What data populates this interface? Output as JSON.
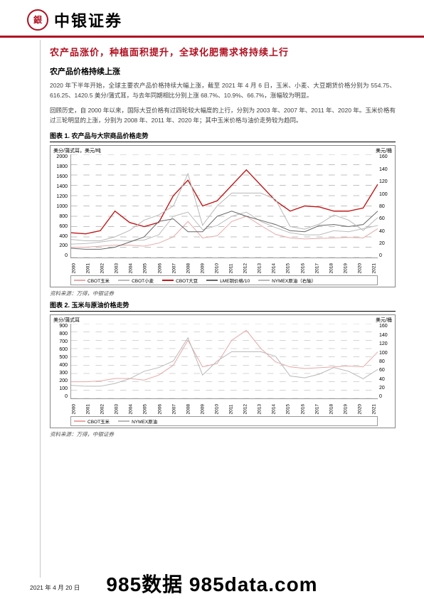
{
  "header": {
    "brand": "中银证券",
    "logo_char": "㊥",
    "rule_color": "#b01020"
  },
  "doc": {
    "title": "农产品涨价，种植面积提升，全球化肥需求将持续上行",
    "subhead": "农产品价格持续上涨",
    "para1": "2020 年下半年开始，全球主要农产品价格持续大幅上涨，截至 2021 年 4 月 6 日，玉米、小麦、大豆期货价格分别为 554.75、616.25、1420.5 美分/蒲式耳，与去年同期相比分别上涨 68.7%、10.9%、66.7%，涨幅较为明显。",
    "para2": "回顾历史，自 2000 年以来，国际大豆价格有过四轮较大幅度的上行，分别为 2003 年、2007 年、2011 年、2020 年。玉米价格有过三轮明显的上涨，分别为 2008 年、2011 年、2020 年；其中玉米价格与油价走势较为趋同。"
  },
  "chart1": {
    "title": "图表 1. 农产品与大宗商品价格走势",
    "ylabel_left": "美分/蒲式耳，美元/吨",
    "ylabel_right": "美元/桶",
    "ylim_left": [
      0,
      2000
    ],
    "ytick_left_step": 200,
    "ylim_right": [
      0,
      160
    ],
    "ytick_right_step": 20,
    "xyears": [
      "2000",
      "2001",
      "2002",
      "2003",
      "2004",
      "2005",
      "2006",
      "2007",
      "2008",
      "2009",
      "2010",
      "2011",
      "2012",
      "2013",
      "2014",
      "2015",
      "2016",
      "2017",
      "2018",
      "2019",
      "2020",
      "2021"
    ],
    "series": {
      "corn": {
        "color": "#e8a8a8",
        "label": "CBOT玉米",
        "data": [
          200,
          200,
          220,
          240,
          240,
          220,
          280,
          400,
          700,
          380,
          420,
          700,
          800,
          620,
          450,
          380,
          360,
          370,
          380,
          390,
          380,
          560
        ]
      },
      "wheat": {
        "color": "#bbbbbb",
        "label": "CBOT小麦",
        "data": [
          260,
          270,
          300,
          340,
          320,
          340,
          440,
          800,
          880,
          540,
          620,
          800,
          880,
          700,
          580,
          480,
          440,
          440,
          520,
          500,
          560,
          620
        ]
      },
      "soybean": {
        "color": "#c21818",
        "label": "CBOT大豆",
        "data": [
          480,
          460,
          520,
          900,
          680,
          600,
          680,
          1200,
          1500,
          1000,
          1100,
          1400,
          1700,
          1400,
          1100,
          900,
          1000,
          980,
          900,
          900,
          960,
          1420
        ]
      },
      "copper": {
        "color": "#666666",
        "label": "LME铜价格/10",
        "data": [
          180,
          160,
          160,
          200,
          300,
          400,
          700,
          750,
          500,
          500,
          800,
          900,
          800,
          720,
          640,
          520,
          500,
          620,
          640,
          600,
          640,
          900
        ]
      },
      "crude": {
        "color": "#b8b8b8",
        "label": "NYMEX原油（右轴）",
        "data": [
          28,
          26,
          26,
          32,
          42,
          58,
          66,
          80,
          130,
          50,
          80,
          100,
          100,
          100,
          90,
          48,
          44,
          52,
          66,
          58,
          42,
          62
        ]
      }
    },
    "grid_color": "#aaaaaa",
    "background": "#ffffff",
    "source": "资料来源：万得，中银证券"
  },
  "chart2": {
    "title": "图表 2. 玉米与原油价格走势",
    "ylabel_left": "美分/蒲式耳",
    "ylabel_right": "美元/桶",
    "ylim_left": [
      0,
      900
    ],
    "ytick_left_step": 100,
    "ylim_right": [
      0,
      160
    ],
    "ytick_right_step": 20,
    "xyears": [
      "2000",
      "2001",
      "2002",
      "2003",
      "2004",
      "2005",
      "2006",
      "2007",
      "2008",
      "2009",
      "2010",
      "2011",
      "2012",
      "2013",
      "2014",
      "2015",
      "2016",
      "2017",
      "2018",
      "2019",
      "2020",
      "2021"
    ],
    "series": {
      "corn": {
        "color": "#e8a8a8",
        "label": "CBOT玉米",
        "data": [
          200,
          200,
          210,
          240,
          240,
          220,
          280,
          400,
          700,
          380,
          420,
          700,
          820,
          600,
          440,
          380,
          360,
          370,
          380,
          390,
          380,
          560
        ]
      },
      "crude": {
        "color": "#b8b8b8",
        "label": "NYMEX原油",
        "data": [
          28,
          26,
          26,
          32,
          42,
          58,
          66,
          80,
          130,
          50,
          80,
          100,
          100,
          100,
          90,
          48,
          44,
          52,
          66,
          58,
          42,
          62
        ]
      }
    },
    "grid_color": "#aaaaaa",
    "background": "#ffffff",
    "source": "资料来源：万得，中银证券"
  },
  "footer": {
    "date": "2021 年 4 月 20 日",
    "watermark": "985数据 985data.com"
  }
}
